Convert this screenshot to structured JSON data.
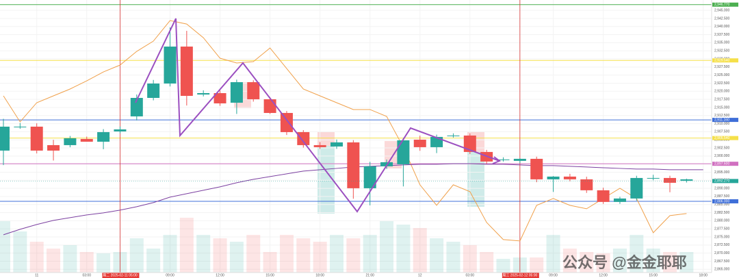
{
  "chart_data": {
    "type": "candlestick",
    "categories": [
      null,
      null,
      "11",
      null,
      null,
      "03:00",
      null,
      null,
      null,
      null,
      "09:00",
      null,
      null,
      "12:00",
      null,
      null,
      "15:00",
      null,
      null,
      "18:00",
      null,
      null,
      "21:00",
      null,
      null,
      "12",
      null,
      null,
      "03:00",
      null,
      null,
      null,
      null,
      "09:00",
      null,
      null,
      "12:00",
      null,
      null,
      "15:00",
      null,
      null,
      "18:00"
    ],
    "open": [
      2901.67,
      2909.07,
      2909.07,
      2903.36,
      2903.36,
      2905.27,
      2904.42,
      2907.59,
      2912.24,
      2917.95,
      2922.39,
      2933.81,
      2919.0,
      2919.43,
      2916.47,
      2922.81,
      2917.53,
      2913.3,
      2907.38,
      2903.36,
      2902.94,
      2904.21,
      2890.04,
      2896.81,
      2897.44,
      2905.05,
      2902.73,
      2906.32,
      2906.32,
      2901.25,
      2898.92,
      2898.5,
      2899.13,
      2892.79,
      2893.64,
      2892.79,
      2889.41,
      2885.81,
      2886.87,
      2893.21,
      2893.21,
      2892.37,
      null
    ],
    "high": [
      2911.5,
      2910.2,
      2910.1,
      2905.0,
      2906.2,
      2906.0,
      2908.3,
      2909.1,
      2919.0,
      2923.5,
      2939.73,
      2938.67,
      2920.3,
      2920.2,
      2923.6,
      2923.4,
      2918.2,
      2913.9,
      2908.0,
      2904.3,
      2905.1,
      2904.9,
      2898.2,
      2898.9,
      2905.6,
      2906.3,
      2906.6,
      2907.0,
      2907.0,
      2901.9,
      2899.6,
      2899.3,
      2899.8,
      2893.8,
      2894.5,
      2893.6,
      2890.2,
      2887.4,
      2893.9,
      2894.2,
      2893.9,
      2893.0,
      null
    ],
    "low": [
      2897.2,
      2908.4,
      2900.8,
      2898.6,
      2902.7,
      2904.5,
      2902.1,
      2907.0,
      2911.0,
      2917.2,
      2921.5,
      2915.6,
      2918.4,
      2915.5,
      2913.0,
      2916.8,
      2913.0,
      2906.5,
      2902.6,
      2902.2,
      2902.2,
      2886.8,
      2884.76,
      2896.0,
      2890.6,
      2901.6,
      2900.9,
      2905.7,
      2900.6,
      2897.6,
      2898.3,
      2897.8,
      2891.9,
      2888.9,
      2892.2,
      2888.6,
      2885.2,
      2885.2,
      2886.2,
      2892.5,
      2888.8,
      2891.8,
      null
    ],
    "close": [
      2909.07,
      2909.07,
      2901.67,
      2901.67,
      2905.48,
      2904.42,
      2907.38,
      2908.22,
      2917.95,
      2922.39,
      2933.81,
      2918.58,
      2919.43,
      2916.26,
      2922.81,
      2917.53,
      2913.3,
      2907.38,
      2903.36,
      2902.73,
      2904.21,
      2890.04,
      2896.81,
      2898.08,
      2904.84,
      2902.73,
      2905.9,
      2906.32,
      2901.25,
      2898.29,
      2898.92,
      2899.13,
      2892.79,
      2893.64,
      2892.79,
      2889.41,
      2885.81,
      2886.87,
      2893.21,
      2893.21,
      2891.73,
      2892.79,
      null
    ],
    "up_color": "#26a69a",
    "down_color": "#ef5350",
    "volume": [
      75,
      60,
      45,
      35,
      40,
      30,
      28,
      30,
      50,
      35,
      55,
      80,
      55,
      50,
      45,
      55,
      30,
      55,
      50,
      45,
      55,
      50,
      55,
      75,
      70,
      65,
      50,
      45,
      40,
      30,
      20,
      22,
      22,
      55,
      35,
      30,
      28,
      35,
      55,
      35,
      30,
      30,
      null
    ],
    "vlim": [
      0,
      100
    ],
    "series": [
      {
        "color": "#f0a04a",
        "values": [
          2918.58,
          2910.55,
          2916.47,
          2918.58,
          2920.7,
          2923.23,
          2925.98,
          2928.1,
          2932.33,
          2935.5,
          2941.84,
          2940.78,
          2936.55,
          2930.21,
          2928.73,
          2929.15,
          2933.38,
          2927.04,
          2920.7,
          2918.58,
          2916.47,
          2914.36,
          2914.36,
          2912.24,
          2902.73,
          2891.1,
          2884.76,
          2891.1,
          2888.99,
          2879.47,
          2874.19,
          2873.76,
          2884.76,
          2886.87,
          2884.76,
          2883.7,
          2886.87,
          2890.04,
          2886.87,
          2876.3,
          2881.59,
          2882.22,
          null
        ]
      },
      {
        "color": "#7b3fa0",
        "values": [
          2875.67,
          2877.36,
          2878.84,
          2880.11,
          2880.95,
          2881.8,
          2882.43,
          2883.28,
          2884.33,
          2885.6,
          2887.29,
          2888.35,
          2889.41,
          2890.47,
          2891.73,
          2892.79,
          2893.64,
          2894.48,
          2895.33,
          2895.75,
          2896.17,
          2896.6,
          2896.81,
          2897.02,
          2897.23,
          2897.44,
          2897.44,
          2897.65,
          2897.65,
          2897.44,
          2897.44,
          2897.23,
          2897.02,
          2897.02,
          2896.81,
          2896.6,
          2896.38,
          2896.17,
          2895.96,
          2895.96,
          2895.75,
          2895.75,
          2895.75
        ]
      }
    ],
    "levels": [
      {
        "value": 2946.77,
        "label": "2,946.770",
        "color": "#4caf50"
      },
      {
        "value": 2929.54,
        "label": "2,929.540",
        "color": "#f5e04a"
      },
      {
        "value": 2911.16,
        "label": "2,911.160",
        "color": "#3f6fd8"
      },
      {
        "value": 2905.54,
        "label": "2,905.540",
        "color": "#f5e04a"
      },
      {
        "value": 2897.6,
        "label": "2,897.600",
        "color": "#d070c0"
      },
      {
        "value": 2886.0,
        "label": "2,886.000",
        "color": "#3f6fd8"
      }
    ],
    "sessions": [
      {
        "index": 7,
        "label": "周二 2025-02-11 05:00"
      },
      {
        "index": 31,
        "label": "周三 2025-02-12 05:00"
      }
    ],
    "last_price": {
      "value": 2892.27,
      "label": "2,892.270"
    },
    "ylim": [
      2864,
      2948.2
    ],
    "yticks": [
      {
        "value": 2945,
        "label": "2,945.000"
      },
      {
        "value": 2942.5,
        "label": "2,942.500"
      },
      {
        "value": 2940,
        "label": "2,940.000"
      },
      {
        "value": 2937.5,
        "label": "2,937.500"
      },
      {
        "value": 2935,
        "label": "2,935.000"
      },
      {
        "value": 2932.5,
        "label": "2,932.500"
      },
      {
        "value": 2930,
        "label": "2,930.000"
      },
      {
        "value": 2927.5,
        "label": "2,927.500"
      },
      {
        "value": 2925,
        "label": "2,925.000"
      },
      {
        "value": 2922.5,
        "label": "2,922.500"
      },
      {
        "value": 2920,
        "label": "2,920.000"
      },
      {
        "value": 2917.5,
        "label": "2,917.500"
      },
      {
        "value": 2915,
        "label": "2,915.000"
      },
      {
        "value": 2912.5,
        "label": "2,912.500"
      },
      {
        "value": 2910,
        "label": "2,910.000"
      },
      {
        "value": 2907.5,
        "label": "2,907.500"
      },
      {
        "value": 2905,
        "label": "2,905.000"
      },
      {
        "value": 2902.5,
        "label": "2,902.500"
      },
      {
        "value": 2900,
        "label": "2,900.000"
      },
      {
        "value": 2897.5,
        "label": "2,897.500"
      },
      {
        "value": 2895,
        "label": "2,895.000"
      },
      {
        "value": 2892.5,
        "label": "2,892.500"
      },
      {
        "value": 2890,
        "label": "2,890.000"
      },
      {
        "value": 2887.5,
        "label": "2,887.500"
      },
      {
        "value": 2885,
        "label": "2,885.000"
      },
      {
        "value": 2882.5,
        "label": "2,882.500"
      },
      {
        "value": 2880,
        "label": "2,880.000"
      },
      {
        "value": 2877.5,
        "label": "2,877.500"
      },
      {
        "value": 2875,
        "label": "2,875.000"
      },
      {
        "value": 2872.5,
        "label": "2,872.500"
      },
      {
        "value": 2870,
        "label": "2,870.000"
      },
      {
        "value": 2867.5,
        "label": "2,867.500"
      },
      {
        "value": 2865,
        "label": "2,865.000"
      }
    ],
    "grid": true,
    "watermark": "公众号 @金金耶耶"
  }
}
